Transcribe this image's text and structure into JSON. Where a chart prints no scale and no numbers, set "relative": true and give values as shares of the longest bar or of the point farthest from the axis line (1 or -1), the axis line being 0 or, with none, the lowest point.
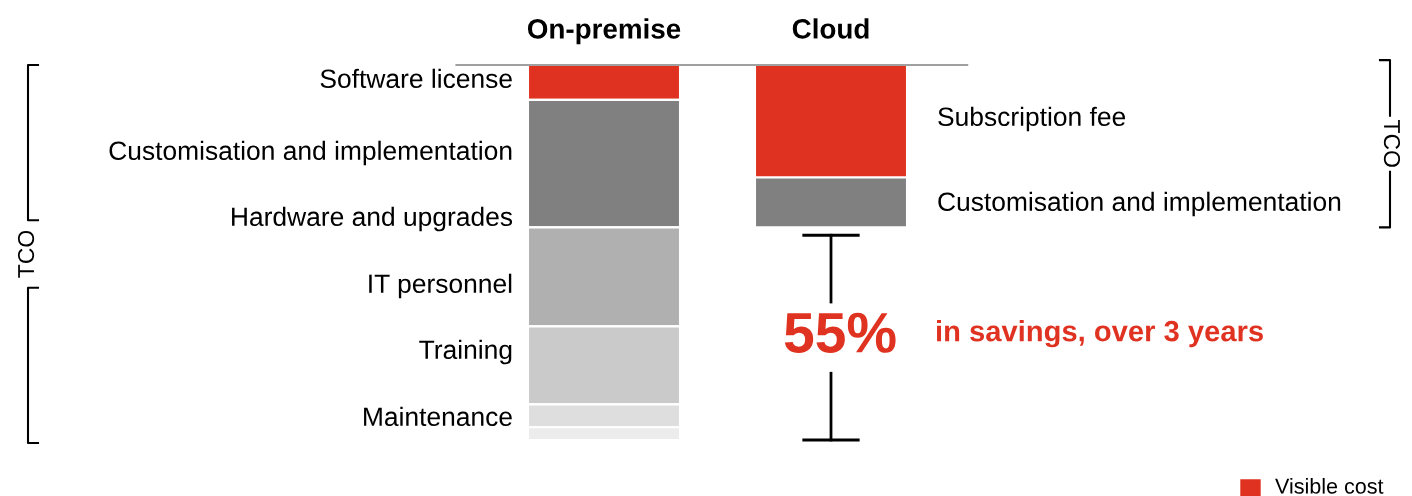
{
  "chart_data": {
    "type": "bar",
    "stacked": true,
    "relative": true,
    "categories": [
      "On-premise",
      "Cloud"
    ],
    "series": [
      {
        "color": "#e03220",
        "values": [
          -0.093,
          -0.3
        ]
      },
      {
        "color": "#808080",
        "values": [
          -0.34,
          -0.133
        ]
      },
      {
        "color": "#b0b0b0",
        "values": [
          -0.264,
          null
        ]
      },
      {
        "color": "#cacaca",
        "values": [
          -0.208,
          null
        ]
      },
      {
        "color": "#dedede",
        "values": [
          -0.061,
          null
        ]
      },
      {
        "color": "#ececec",
        "values": [
          -0.034,
          null
        ]
      }
    ],
    "annotations": [
      "TCO",
      "TCO",
      "55%",
      "in savings, over 3 years",
      "Visible cost",
      "Software license",
      "Customisation and implementation",
      "Hardware and upgrades",
      "IT personnel",
      "Training",
      "Maintenance",
      "Subscription fee",
      "Customisation and implementation"
    ]
  }
}
